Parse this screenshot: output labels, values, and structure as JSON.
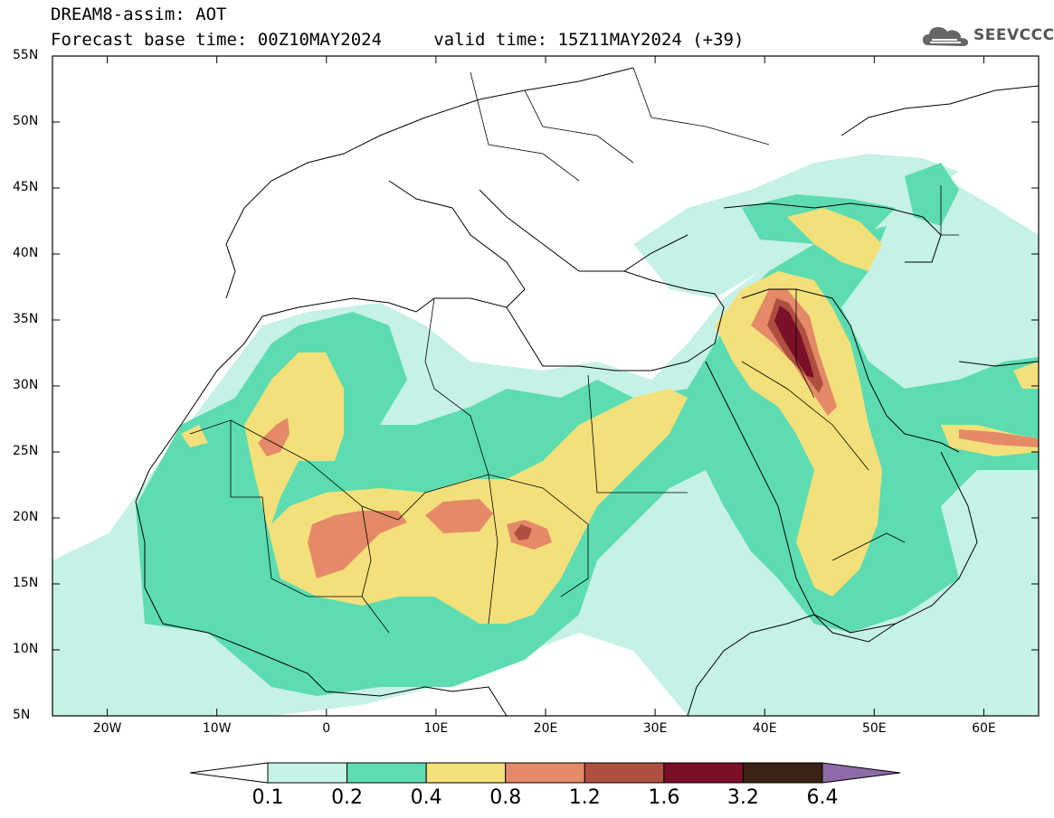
{
  "header": {
    "title_line1": "DREAM8-assim: AOT",
    "title_line2": "Forecast base time: 00Z10MAY2024     valid time: 15Z11MAY2024 (+39)"
  },
  "logo": {
    "text": "SEEVCCC",
    "icon": "cloud-logo-icon"
  },
  "map": {
    "projection": "lat-lon",
    "lon_range": [
      -25,
      65
    ],
    "lat_range": [
      5,
      55
    ],
    "lat_ticks": [
      "55N",
      "50N",
      "45N",
      "40N",
      "35N",
      "30N",
      "25N",
      "20N",
      "15N",
      "10N",
      "5N"
    ],
    "lon_ticks": [
      "20W",
      "10W",
      "0",
      "10E",
      "20E",
      "30E",
      "40E",
      "50E",
      "60E"
    ]
  },
  "colorbar": {
    "labels": [
      "0.1",
      "0.2",
      "0.4",
      "0.8",
      "1.2",
      "1.6",
      "3.2",
      "6.4"
    ],
    "colors": [
      "#ffffff",
      "#c6f1e6",
      "#5cdcb0",
      "#f3e07a",
      "#e48a68",
      "#ad5040",
      "#7c0f28",
      "#3a2216",
      "#8f6aa8"
    ]
  }
}
